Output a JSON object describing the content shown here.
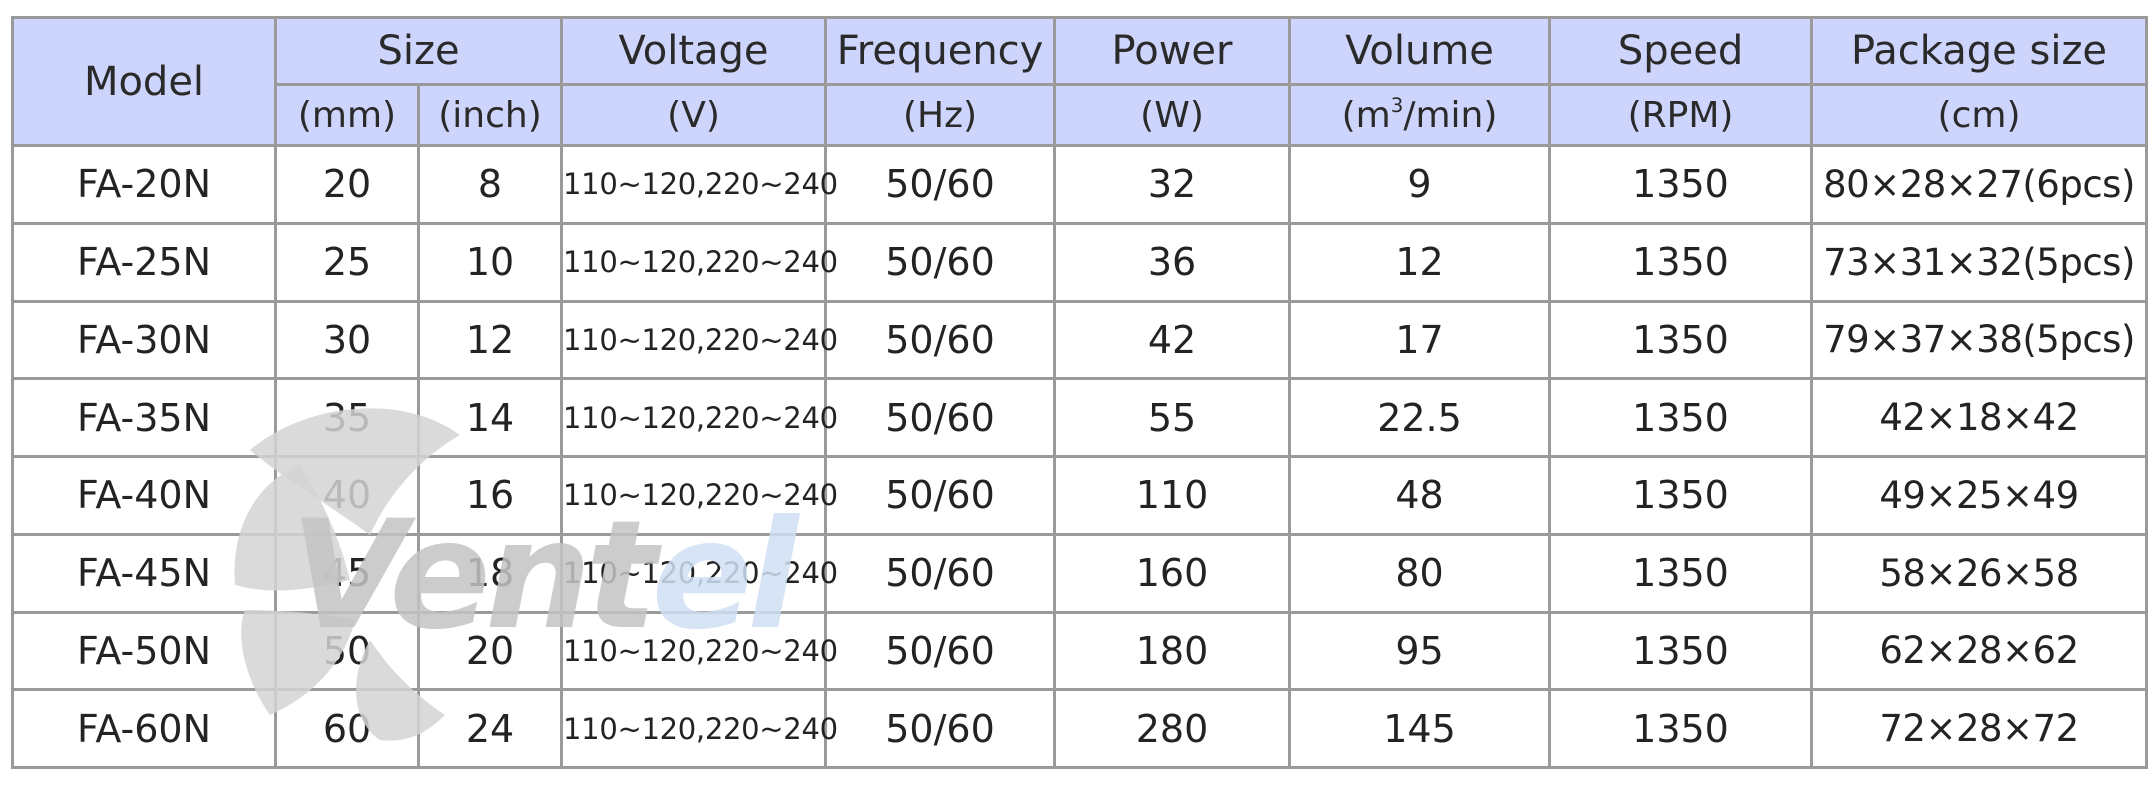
{
  "header": {
    "model": "Model",
    "size": "Size",
    "size_mm_unit": "(mm)",
    "size_inch_unit": "(inch)",
    "voltage": "Voltage",
    "voltage_unit": "(V)",
    "frequency": "Frequency",
    "frequency_unit": "(Hz)",
    "power": "Power",
    "power_unit": "(W)",
    "volume": "Volume",
    "volume_unit_prefix": "(m",
    "volume_unit_sup": "3",
    "volume_unit_suffix": "/min)",
    "speed": "Speed",
    "speed_unit": "(RPM)",
    "package": "Package size",
    "package_unit": "(cm)"
  },
  "rows": [
    {
      "model": "FA-20N",
      "mm": "20",
      "inch": "8",
      "voltage": "110~120,220~240",
      "frequency": "50/60",
      "power": "32",
      "volume": "9",
      "speed": "1350",
      "package": "80×28×27(6pcs)"
    },
    {
      "model": "FA-25N",
      "mm": "25",
      "inch": "10",
      "voltage": "110~120,220~240",
      "frequency": "50/60",
      "power": "36",
      "volume": "12",
      "speed": "1350",
      "package": "73×31×32(5pcs)"
    },
    {
      "model": "FA-30N",
      "mm": "30",
      "inch": "12",
      "voltage": "110~120,220~240",
      "frequency": "50/60",
      "power": "42",
      "volume": "17",
      "speed": "1350",
      "package": "79×37×38(5pcs)"
    },
    {
      "model": "FA-35N",
      "mm": "35",
      "inch": "14",
      "voltage": "110~120,220~240",
      "frequency": "50/60",
      "power": "55",
      "volume": "22.5",
      "speed": "1350",
      "package": "42×18×42"
    },
    {
      "model": "FA-40N",
      "mm": "40",
      "inch": "16",
      "voltage": "110~120,220~240",
      "frequency": "50/60",
      "power": "110",
      "volume": "48",
      "speed": "1350",
      "package": "49×25×49"
    },
    {
      "model": "FA-45N",
      "mm": "45",
      "inch": "18",
      "voltage": "110~120,220~240",
      "frequency": "50/60",
      "power": "160",
      "volume": "80",
      "speed": "1350",
      "package": "58×26×58"
    },
    {
      "model": "FA-50N",
      "mm": "50",
      "inch": "20",
      "voltage": "110~120,220~240",
      "frequency": "50/60",
      "power": "180",
      "volume": "95",
      "speed": "1350",
      "package": "62×28×62"
    },
    {
      "model": "FA-60N",
      "mm": "60",
      "inch": "24",
      "voltage": "110~120,220~240",
      "frequency": "50/60",
      "power": "280",
      "volume": "145",
      "speed": "1350",
      "package": "72×28×72"
    }
  ],
  "watermark": {
    "text": "Ventel",
    "icon": "fan-logo-icon",
    "colors": {
      "gray": "#c4c4c4",
      "blue": "#cfe0f4",
      "blade": "#d4d4d4"
    }
  },
  "colors": {
    "header_bg": "#cdd5fd",
    "border": "#9a9a9a",
    "text": "#232323"
  }
}
